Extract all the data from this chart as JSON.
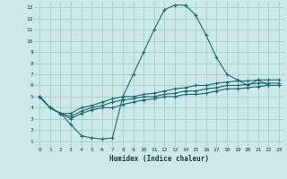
{
  "xlabel": "Humidex (Indice chaleur)",
  "background_color": "#cce8e8",
  "grid_color": "#aad0d0",
  "line_color": "#1a6b6b",
  "xlim": [
    -0.5,
    23.5
  ],
  "ylim": [
    0.5,
    13.5
  ],
  "xticks": [
    0,
    1,
    2,
    3,
    4,
    5,
    6,
    7,
    8,
    9,
    10,
    11,
    12,
    13,
    14,
    15,
    16,
    17,
    18,
    19,
    20,
    21,
    22,
    23
  ],
  "yticks": [
    1,
    2,
    3,
    4,
    5,
    6,
    7,
    8,
    9,
    10,
    11,
    12,
    13
  ],
  "series": [
    [
      5.0,
      4.0,
      3.5,
      2.5,
      1.5,
      1.3,
      1.2,
      1.3,
      5.0,
      7.0,
      9.0,
      11.0,
      12.8,
      13.2,
      13.2,
      12.3,
      10.5,
      8.5,
      7.0,
      6.5,
      6.0,
      6.5,
      6.0,
      6.0
    ],
    [
      5.0,
      4.0,
      3.5,
      3.5,
      4.0,
      4.2,
      4.5,
      4.8,
      5.0,
      5.0,
      5.2,
      5.3,
      5.5,
      5.7,
      5.8,
      6.0,
      6.0,
      6.2,
      6.3,
      6.4,
      6.4,
      6.5,
      6.5,
      6.5
    ],
    [
      5.0,
      4.0,
      3.5,
      3.2,
      3.7,
      4.0,
      4.2,
      4.5,
      4.7,
      4.8,
      5.0,
      5.0,
      5.2,
      5.3,
      5.5,
      5.5,
      5.7,
      5.8,
      6.0,
      6.0,
      6.1,
      6.2,
      6.2,
      6.2
    ],
    [
      5.0,
      4.0,
      3.5,
      3.0,
      3.5,
      3.8,
      4.0,
      4.0,
      4.3,
      4.5,
      4.7,
      4.8,
      5.0,
      5.0,
      5.2,
      5.2,
      5.3,
      5.5,
      5.7,
      5.7,
      5.8,
      5.9,
      6.0,
      6.0
    ]
  ]
}
